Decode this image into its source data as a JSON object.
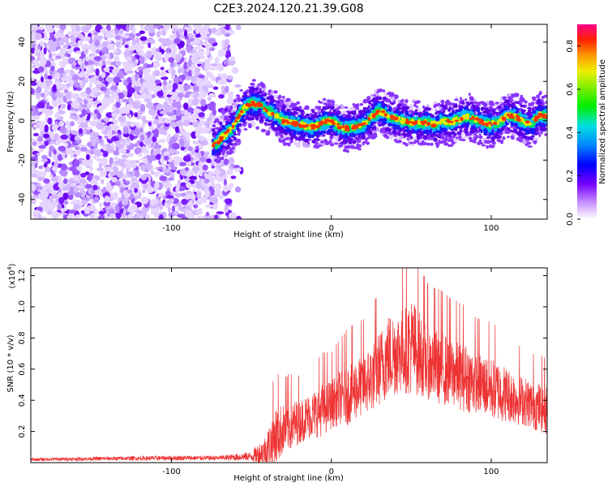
{
  "title": "C2E3.2024.120.21.39.G08",
  "chart_data": [
    {
      "type": "heatmap",
      "xlabel": "Height of straight line (km)",
      "ylabel": "Frequency (Hz)",
      "xlim": [
        -188,
        135
      ],
      "ylim": [
        -50,
        49
      ],
      "x_ticks": [
        -100,
        0,
        100
      ],
      "y_ticks": [
        -40,
        -20,
        0,
        20,
        40
      ],
      "colorbar": {
        "label": "Normalized spectral amplitude",
        "range": [
          0,
          0.9
        ],
        "ticks": [
          0.0,
          0.2,
          0.4,
          0.6,
          0.8
        ]
      },
      "ridge": {
        "x": [
          -72,
          -68,
          -62,
          -58,
          -55,
          -50,
          -45,
          -40,
          -35,
          -30,
          -25,
          -20,
          -15,
          -10,
          -5,
          0,
          5,
          10,
          15,
          20,
          25,
          30,
          35,
          40,
          45,
          50,
          55,
          60,
          65,
          70,
          75,
          80,
          85,
          90,
          95,
          100,
          105,
          110,
          115,
          120,
          125,
          130,
          135
        ],
        "y": [
          -12,
          -8,
          -4,
          2,
          6,
          9,
          8,
          5,
          3,
          0,
          -1,
          -2,
          -3,
          -3,
          -1,
          0,
          -3,
          -4,
          -3,
          -2,
          2,
          5,
          3,
          1,
          0,
          -1,
          -1,
          -1,
          -2,
          0,
          -1,
          1,
          2,
          1,
          -1,
          -2,
          -1,
          3,
          2,
          0,
          -2,
          3,
          2
        ]
      }
    },
    {
      "type": "line",
      "xlabel": "Height of straight line (km)",
      "ylabel": "SNR (10 * v/v)",
      "y_multiplier": "(x10",
      "y_multiplier_exp": "4",
      "y_multiplier_close": ")",
      "xlim": [
        -188,
        135
      ],
      "ylim": [
        0,
        1.25
      ],
      "x_ticks": [
        -100,
        0,
        100
      ],
      "y_ticks": [
        0.2,
        0.4,
        0.6,
        0.8,
        1.0,
        1.2
      ],
      "series": [
        {
          "color": "#ee3333",
          "x": [
            -188,
            -150,
            -100,
            -70,
            -50,
            -42,
            -38,
            -35,
            -30,
            -25,
            -20,
            -15,
            -10,
            -5,
            0,
            5,
            10,
            15,
            20,
            25,
            30,
            35,
            40,
            45,
            50,
            55,
            60,
            65,
            70,
            75,
            80,
            85,
            90,
            95,
            100,
            105,
            110,
            115,
            120,
            125,
            130,
            135
          ],
          "y": [
            0.02,
            0.025,
            0.03,
            0.03,
            0.04,
            0.06,
            0.1,
            0.15,
            0.2,
            0.22,
            0.25,
            0.28,
            0.3,
            0.33,
            0.36,
            0.4,
            0.42,
            0.45,
            0.48,
            0.52,
            0.58,
            0.65,
            0.68,
            0.7,
            0.72,
            0.68,
            0.62,
            0.6,
            0.58,
            0.56,
            0.54,
            0.52,
            0.5,
            0.48,
            0.46,
            0.44,
            0.42,
            0.4,
            0.38,
            0.36,
            0.34,
            0.32
          ],
          "spread": [
            0.01,
            0.012,
            0.015,
            0.015,
            0.03,
            0.12,
            0.2,
            0.25,
            0.2,
            0.2,
            0.18,
            0.18,
            0.2,
            0.22,
            0.2,
            0.22,
            0.25,
            0.25,
            0.25,
            0.28,
            0.3,
            0.35,
            0.35,
            0.35,
            0.4,
            0.35,
            0.3,
            0.3,
            0.3,
            0.28,
            0.28,
            0.28,
            0.25,
            0.25,
            0.25,
            0.25,
            0.22,
            0.22,
            0.2,
            0.2,
            0.2,
            0.2
          ]
        }
      ]
    }
  ]
}
